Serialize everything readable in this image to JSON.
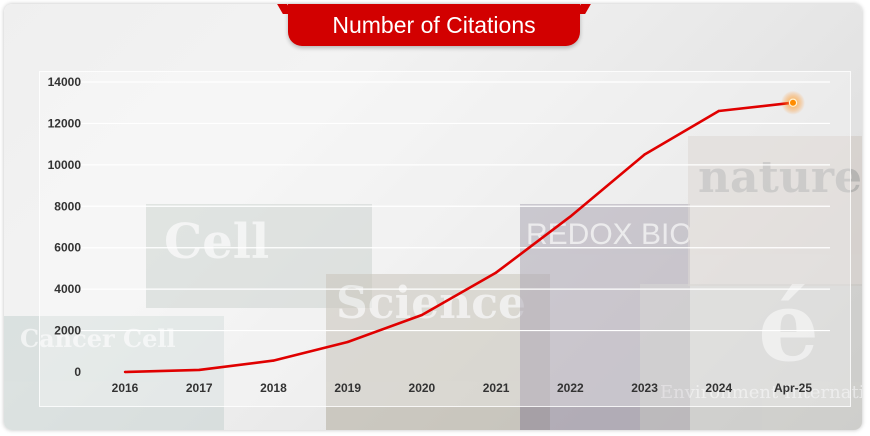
{
  "title": "Number of Citations",
  "colors": {
    "line": "#e00000",
    "title_bg": "#d20000",
    "grid": "#ffffff",
    "endpoint": "#ff8c00"
  },
  "background_covers": [
    "Cell",
    "Cancer Cell",
    "Science",
    "REDOX BIOLOGY",
    "nature",
    "é",
    "Environment International"
  ],
  "chart_data": {
    "type": "line",
    "title": "Number of Citations",
    "xlabel": "",
    "ylabel": "",
    "categories": [
      "2016",
      "2017",
      "2018",
      "2019",
      "2020",
      "2021",
      "2022",
      "2023",
      "2024",
      "Apr-25"
    ],
    "series": [
      {
        "values": [
          0,
          100,
          550,
          1450,
          2750,
          4800,
          7500,
          10500,
          12600,
          13000
        ]
      }
    ],
    "ylim": [
      0,
      14000
    ],
    "yticks": [
      0,
      2000,
      4000,
      6000,
      8000,
      10000,
      12000,
      14000
    ],
    "grid": true,
    "legend": "none",
    "highlight_last_point": true
  }
}
